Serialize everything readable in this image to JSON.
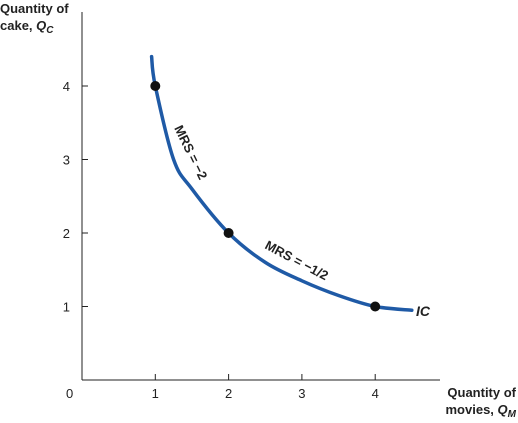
{
  "chart_data": {
    "type": "line",
    "ylabel_line1": "Quantity of",
    "ylabel_line2_prefix": "cake, ",
    "ylabel_var": "Q",
    "ylabel_sub": "C",
    "xlabel_line1": "Quantity of",
    "xlabel_line2_prefix": "movies, ",
    "xlabel_var": "Q",
    "xlabel_sub": "M",
    "origin_label": "0",
    "xlim": [
      0,
      4.8
    ],
    "ylim": [
      0,
      4.8
    ],
    "x_ticks": [
      "1",
      "2",
      "3",
      "4"
    ],
    "y_ticks": [
      "1",
      "2",
      "3",
      "4"
    ],
    "grid": false,
    "series": [
      {
        "name": "IC",
        "x": [
          0.95,
          1,
          1.25,
          1.5,
          2,
          2.5,
          3,
          3.5,
          4,
          4.5
        ],
        "y": [
          4.4,
          4.0,
          3.0,
          2.6,
          2.0,
          1.6,
          1.35,
          1.15,
          1.0,
          0.95
        ],
        "color": "#1f5aa6"
      }
    ],
    "points": [
      {
        "x": 1,
        "y": 4
      },
      {
        "x": 2,
        "y": 2
      },
      {
        "x": 4,
        "y": 1
      }
    ],
    "annotations": [
      {
        "text": "MRS = −2",
        "x": 1.3,
        "y": 3.1
      },
      {
        "text": "MRS = −1/2",
        "x": 2.7,
        "y": 1.65
      }
    ],
    "curve_label": "IC"
  }
}
